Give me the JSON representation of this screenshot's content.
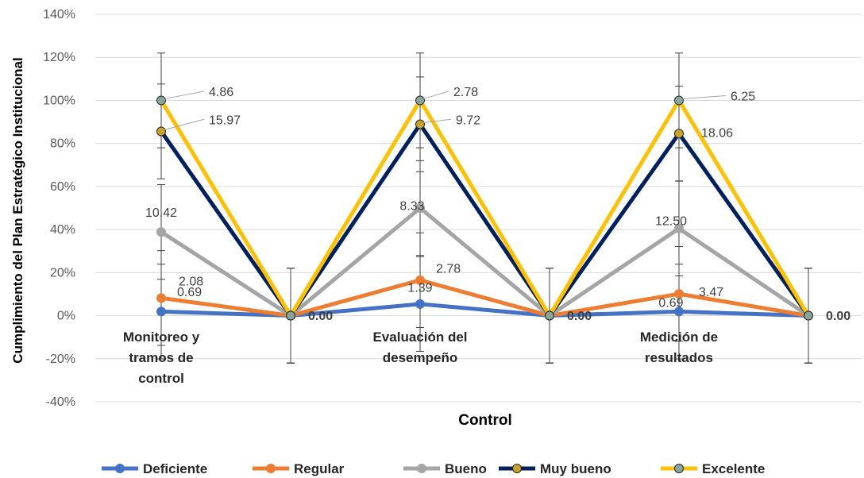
{
  "chart_data": {
    "type": "line",
    "categories": [
      "Monitoreo y tramos de control",
      "",
      "Evaluación del desempeño",
      "",
      "Medición de resultados",
      ""
    ],
    "category_label_lines": [
      [
        "Monitoreo y",
        "tramos de",
        "control"
      ],
      [],
      [
        "Evaluación del",
        "desempeño"
      ],
      [],
      [
        "Medición de",
        "resultados"
      ],
      []
    ],
    "xlabel": "Control",
    "ylabel": "Cumplimiento del Plan Estratégico Institucional",
    "ylim": [
      -40,
      140
    ],
    "yticks": [
      -40,
      -20,
      0,
      20,
      40,
      60,
      80,
      100,
      120,
      140
    ],
    "ytick_labels": [
      "-40%",
      "-20%",
      "0%",
      "20%",
      "40%",
      "60%",
      "80%",
      "100%",
      "120%",
      "140%"
    ],
    "grid": true,
    "legend": "bottom",
    "error_bar": 22,
    "series": [
      {
        "name": "Deficiente",
        "color": "#4472C4",
        "values": [
          1.9,
          0,
          5.4,
          0,
          1.9,
          0
        ]
      },
      {
        "name": "Regular",
        "color": "#ED7D31",
        "values": [
          8.2,
          0,
          16.5,
          0,
          10.1,
          0
        ]
      },
      {
        "name": "Bueno",
        "color": "#A5A5A5",
        "values": [
          38.9,
          0,
          50,
          0,
          40.5,
          0
        ]
      },
      {
        "name": "Muy bueno",
        "color": "#002060",
        "marker": "#C9A227",
        "values": [
          85.6,
          0,
          88.9,
          0,
          84.6,
          0
        ]
      },
      {
        "name": "Excelente",
        "color": "#FFC000",
        "marker": "#86A69A",
        "values": [
          100,
          0,
          100,
          0,
          100,
          0
        ]
      }
    ],
    "data_labels": [
      {
        "text": "4.86",
        "cat": 0,
        "y": 102,
        "dx": 60
      },
      {
        "text": "15.97",
        "cat": 0,
        "y": 89,
        "dx": 60
      },
      {
        "text": "10.42",
        "cat": 0,
        "y": 46,
        "dx": 0
      },
      {
        "text": "2.08",
        "cat": 0,
        "y": 14,
        "dx": 22
      },
      {
        "text": "0.69",
        "cat": 0,
        "y": 9,
        "dx": 20
      },
      {
        "text": "2.78",
        "cat": 2,
        "y": 102,
        "dx": 42
      },
      {
        "text": "9.72",
        "cat": 2,
        "y": 89,
        "dx": 45
      },
      {
        "text": "8.33",
        "cat": 2,
        "y": 49,
        "dx": -10
      },
      {
        "text": "2.78",
        "cat": 2,
        "y": 20,
        "dx": 20
      },
      {
        "text": "1.39",
        "cat": 2,
        "y": 11,
        "dx": 0
      },
      {
        "text": "6.25",
        "cat": 4,
        "y": 100,
        "dx": 65
      },
      {
        "text": "18.06",
        "cat": 4,
        "y": 83,
        "dx": 28
      },
      {
        "text": "12.50",
        "cat": 4,
        "y": 42,
        "dx": -10
      },
      {
        "text": "3.47",
        "cat": 4,
        "y": 9,
        "dx": 25
      },
      {
        "text": "0.69",
        "cat": 4,
        "y": 4,
        "dx": -10
      },
      {
        "text": "0.00",
        "cat": 1,
        "y": -2,
        "dx": 22,
        "bold": true
      },
      {
        "text": "0.00",
        "cat": 3,
        "y": -2,
        "dx": 22,
        "bold": true
      },
      {
        "text": "0.00",
        "cat": 5,
        "y": -2,
        "dx": 22,
        "bold": true
      }
    ]
  }
}
